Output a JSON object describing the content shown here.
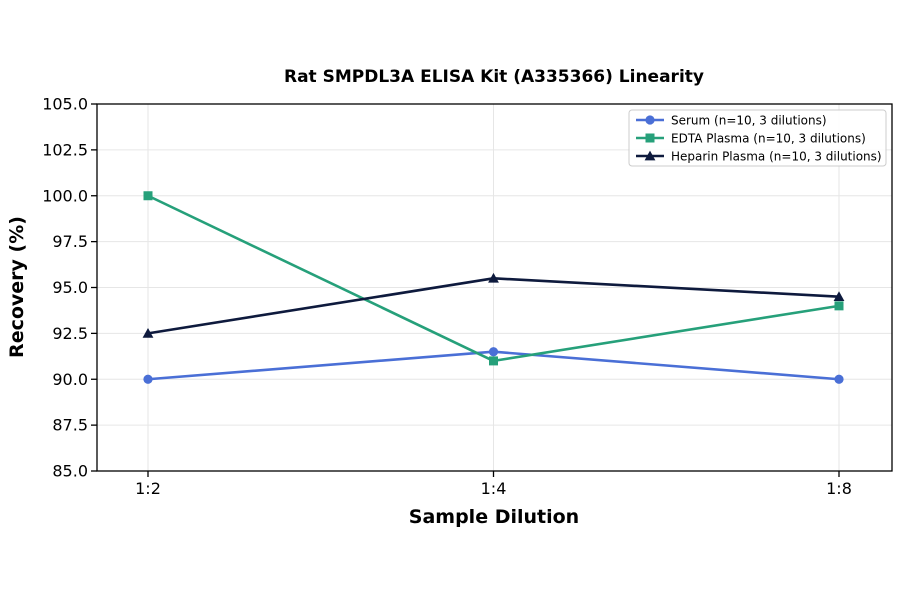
{
  "chart_data": {
    "type": "line",
    "title": "Rat SMPDL3A ELISA Kit (A335366) Linearity",
    "xlabel": "Sample Dilution",
    "ylabel": "Recovery (%)",
    "categories": [
      "1:2",
      "1:4",
      "1:8"
    ],
    "ylim": [
      85.0,
      105.0
    ],
    "yticks": [
      "85.0",
      "87.5",
      "90.0",
      "92.5",
      "95.0",
      "97.5",
      "100.0",
      "102.5",
      "105.0"
    ],
    "grid": true,
    "legend_position": "top-right",
    "series": [
      {
        "name": "Serum (n=10, 3 dilutions)",
        "values": [
          90.0,
          91.5,
          90.0
        ],
        "color": "#4a6fd6",
        "marker": "circle"
      },
      {
        "name": "EDTA Plasma (n=10, 3 dilutions)",
        "values": [
          100.0,
          91.0,
          94.0
        ],
        "color": "#26a07a",
        "marker": "square"
      },
      {
        "name": "Heparin Plasma (n=10, 3 dilutions)",
        "values": [
          92.5,
          95.5,
          94.5
        ],
        "color": "#0e1a3d",
        "marker": "triangle"
      }
    ]
  }
}
